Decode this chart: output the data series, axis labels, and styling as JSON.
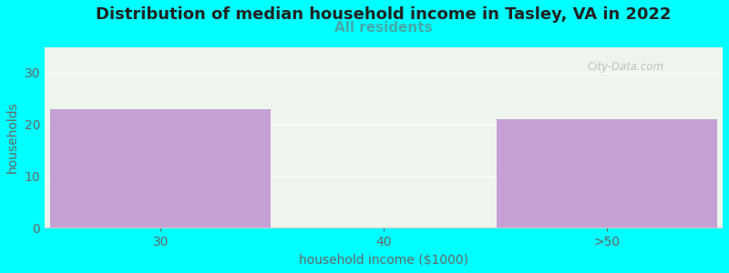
{
  "title": "Distribution of median household income in Tasley, VA in 2022",
  "subtitle": "All residents",
  "xlabel": "household income ($1000)",
  "ylabel": "households",
  "background_color": "#00ffff",
  "plot_bg_color": "#edf5ec",
  "bar_color": "#c4a0d4",
  "categories": [
    "30",
    "40",
    ">50"
  ],
  "values": [
    23,
    0,
    21
  ],
  "ylim": [
    0,
    35
  ],
  "yticks": [
    0,
    10,
    20,
    30
  ],
  "watermark": "City-Data.com",
  "title_fontsize": 13,
  "subtitle_fontsize": 11,
  "subtitle_color": "#44aaaa",
  "axis_label_color": "#666666",
  "tick_color": "#666666",
  "tick_fontsize": 10
}
